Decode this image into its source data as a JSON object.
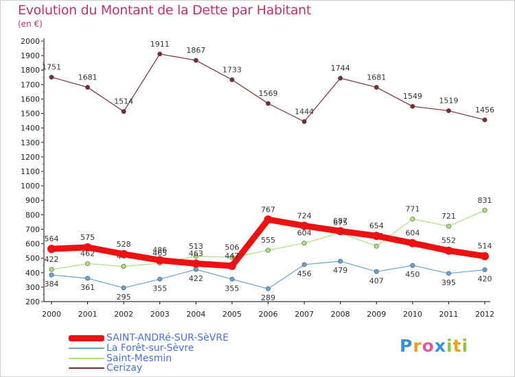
{
  "header": {
    "title": "Evolution du Montant de la Dette par Habitant",
    "subtitle": "(en €)"
  },
  "brand": {
    "logo_letters": [
      "P",
      "r",
      "o",
      "x",
      "i",
      "t",
      "i"
    ],
    "logo_colors": [
      "#3a8fd8",
      "#e8a020",
      "#e05a9a",
      "#3a8fd8",
      "#8cc63f",
      "#e8a020",
      "#8cc63f"
    ]
  },
  "chart_data": {
    "type": "line",
    "title": "Evolution du Montant de la Dette par Habitant",
    "subtitle": "(en €)",
    "xlabel": "",
    "ylabel": "",
    "categories": [
      "2000",
      "2001",
      "2002",
      "2003",
      "2004",
      "2005",
      "2006",
      "2007",
      "2008",
      "2009",
      "2010",
      "2011",
      "2012"
    ],
    "ylim": [
      200,
      2000
    ],
    "yticks": [
      200,
      300,
      400,
      500,
      600,
      700,
      800,
      900,
      1000,
      1100,
      1200,
      1300,
      1400,
      1500,
      1600,
      1700,
      1800,
      1900,
      2000
    ],
    "grid": false,
    "legend": "bottom-left",
    "series": [
      {
        "name": "Cerizay",
        "color": "#7b2b33",
        "values": [
          1751,
          1681,
          1514,
          1911,
          1867,
          1733,
          1569,
          1444,
          1744,
          1681,
          1549,
          1519,
          1456
        ]
      },
      {
        "name": "Saint-Mesmin",
        "color": "#a8e07a",
        "values": [
          422,
          462,
          444,
          465,
          513,
          506,
          555,
          604,
          675,
          583,
          771,
          721,
          831
        ]
      },
      {
        "name": "La Forêt-sur-Sèvre",
        "color": "#6aa0d0",
        "values": [
          384,
          361,
          295,
          355,
          422,
          355,
          289,
          456,
          479,
          407,
          450,
          395,
          420
        ]
      },
      {
        "name": "SAINT-ANDRé-SUR-SèVRE",
        "color": "#ee1111",
        "values": [
          564,
          575,
          528,
          486,
          463,
          447,
          767,
          724,
          687,
          654,
          604,
          552,
          514
        ]
      }
    ],
    "legend_order": [
      "SAINT-ANDRé-SUR-SèVRE",
      "La Forêt-sur-Sèvre",
      "Saint-Mesmin",
      "Cerizay"
    ]
  }
}
